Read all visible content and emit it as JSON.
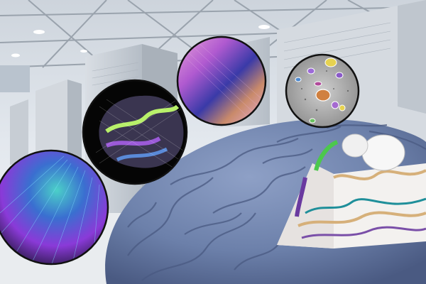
{
  "scene": {
    "colors": {
      "ceiling": "#cfd6de",
      "wall": "#dfe5ec",
      "floor": "#eef1f4",
      "server_light": "#cbd1d8",
      "server_dark": "#aeb6bf",
      "brain": "#6f83ad",
      "brain_dark": "#4f5f86",
      "insert_frame": "#111111"
    },
    "icons": [
      "supercomputer-rack",
      "brain-tractography-insert",
      "brain-surface-mesh-insert",
      "cortex-tissue-insert",
      "segmented-cells-insert",
      "brain-section-cutaway"
    ]
  }
}
